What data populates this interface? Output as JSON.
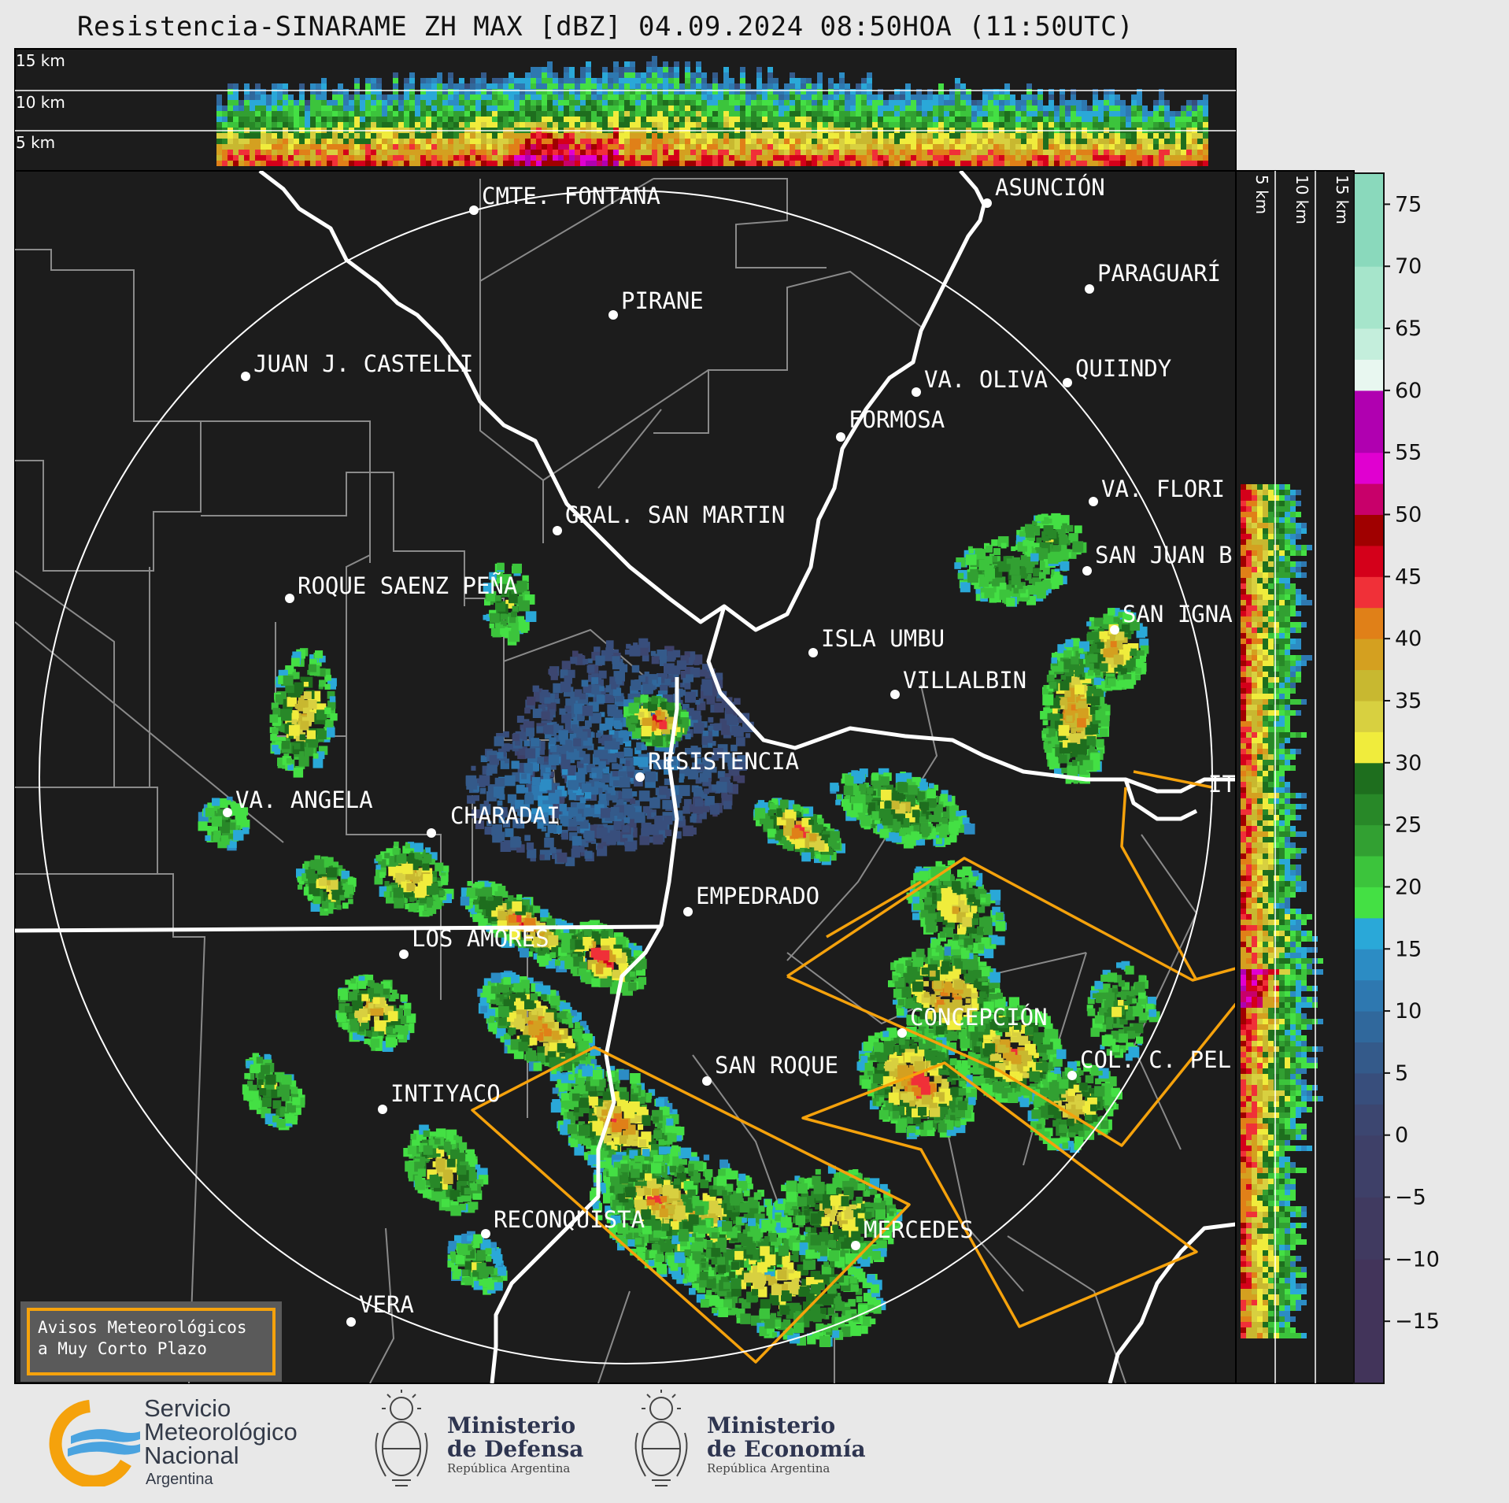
{
  "title": "Resistencia-SINARAME ZH MAX [dBZ] 04.09.2024 08:50HOA (11:50UTC)",
  "cross_section_top": {
    "height_labels": [
      "15 km",
      "10 km",
      "5 km"
    ]
  },
  "cross_section_right": {
    "height_labels": [
      "5 km",
      "10 km",
      "15 km"
    ]
  },
  "colorbar": {
    "ticks": [
      "75",
      "70",
      "65",
      "60",
      "55",
      "50",
      "45",
      "40",
      "35",
      "30",
      "25",
      "20",
      "15",
      "10",
      "5",
      "0",
      "−5",
      "−10",
      "−15"
    ],
    "stops": [
      {
        "from": 60,
        "color": "#e8f7f0"
      },
      {
        "from": 62.5,
        "color": "#c4eedc"
      },
      {
        "from": 65,
        "color": "#a6e5cb"
      },
      {
        "from": 70,
        "color": "#8ad9bc"
      },
      {
        "from": 55,
        "color": "#b000b0"
      },
      {
        "from": 52.5,
        "color": "#e000d0"
      },
      {
        "from": 50,
        "color": "#c8006a"
      },
      {
        "from": 47.5,
        "color": "#a00000"
      },
      {
        "from": 45,
        "color": "#d4001a"
      },
      {
        "from": 42.5,
        "color": "#f03038"
      },
      {
        "from": 40,
        "color": "#e08018"
      },
      {
        "from": 37.5,
        "color": "#d4a020"
      },
      {
        "from": 35,
        "color": "#c8b830"
      },
      {
        "from": 32.5,
        "color": "#d8d040"
      },
      {
        "from": 30,
        "color": "#f0ec3c"
      },
      {
        "from": 27.5,
        "color": "#1e6e1e"
      },
      {
        "from": 25,
        "color": "#288828"
      },
      {
        "from": 22.5,
        "color": "#32a032"
      },
      {
        "from": 20,
        "color": "#3cc43c"
      },
      {
        "from": 17.5,
        "color": "#44e044"
      },
      {
        "from": 15,
        "color": "#2aa8d8"
      },
      {
        "from": 12.5,
        "color": "#2c8cc4"
      },
      {
        "from": 10,
        "color": "#2e78b0"
      },
      {
        "from": 7.5,
        "color": "#30689c"
      },
      {
        "from": 5,
        "color": "#345a8a"
      },
      {
        "from": 2.5,
        "color": "#384e7c"
      },
      {
        "from": 0,
        "color": "#3c4670"
      },
      {
        "from": -5,
        "color": "#3e4068"
      },
      {
        "from": -10,
        "color": "#403a60"
      },
      {
        "from": -15,
        "color": "#42345a"
      }
    ]
  },
  "cities": [
    {
      "name": "CMTE. FONTANA"
    },
    {
      "name": "PIRANE"
    },
    {
      "name": "ASUNCIÓN"
    },
    {
      "name": "PARAGUARÍ"
    },
    {
      "name": "JUAN J. CASTELLI"
    },
    {
      "name": "VA. OLIVA"
    },
    {
      "name": "QUIINDY"
    },
    {
      "name": "FORMOSA"
    },
    {
      "name": "VA. FLORI"
    },
    {
      "name": "GRAL. SAN MARTIN"
    },
    {
      "name": "SAN JUAN B"
    },
    {
      "name": "ROQUE SAENZ PEÑA"
    },
    {
      "name": "SAN IGNA"
    },
    {
      "name": "ISLA UMBU"
    },
    {
      "name": "VILLALBIN"
    },
    {
      "name": "RESISTENCIA"
    },
    {
      "name": "VA. ANGELA"
    },
    {
      "name": "CHARADAI"
    },
    {
      "name": "IT"
    },
    {
      "name": "EMPEDRADO"
    },
    {
      "name": "LOS AMORES"
    },
    {
      "name": "CONCEPCIÓN"
    },
    {
      "name": "SAN ROQUE"
    },
    {
      "name": "COL. C. PEL"
    },
    {
      "name": "INTIYACO"
    },
    {
      "name": "RECONQUISTA"
    },
    {
      "name": "MERCEDES"
    },
    {
      "name": "VERA"
    }
  ],
  "warning_box": {
    "line1": "Avisos Meteorológicos",
    "line2": "a Muy Corto Plazo"
  },
  "footer": {
    "smn": {
      "line1": "Servicio",
      "line2": "Meteorológico",
      "line3": "Nacional",
      "line4": "Argentina"
    },
    "defensa": {
      "title1": "Ministerio",
      "title2": "de Defensa",
      "sub": "República Argentina"
    },
    "economia": {
      "title1": "Ministerio",
      "title2": "de Economía",
      "sub": "República Argentina"
    }
  },
  "colors": {
    "background": "#1c1c1c",
    "warning_polygon": "#f5a20c",
    "boundaries": "#888888",
    "rivers": "#ffffff"
  }
}
